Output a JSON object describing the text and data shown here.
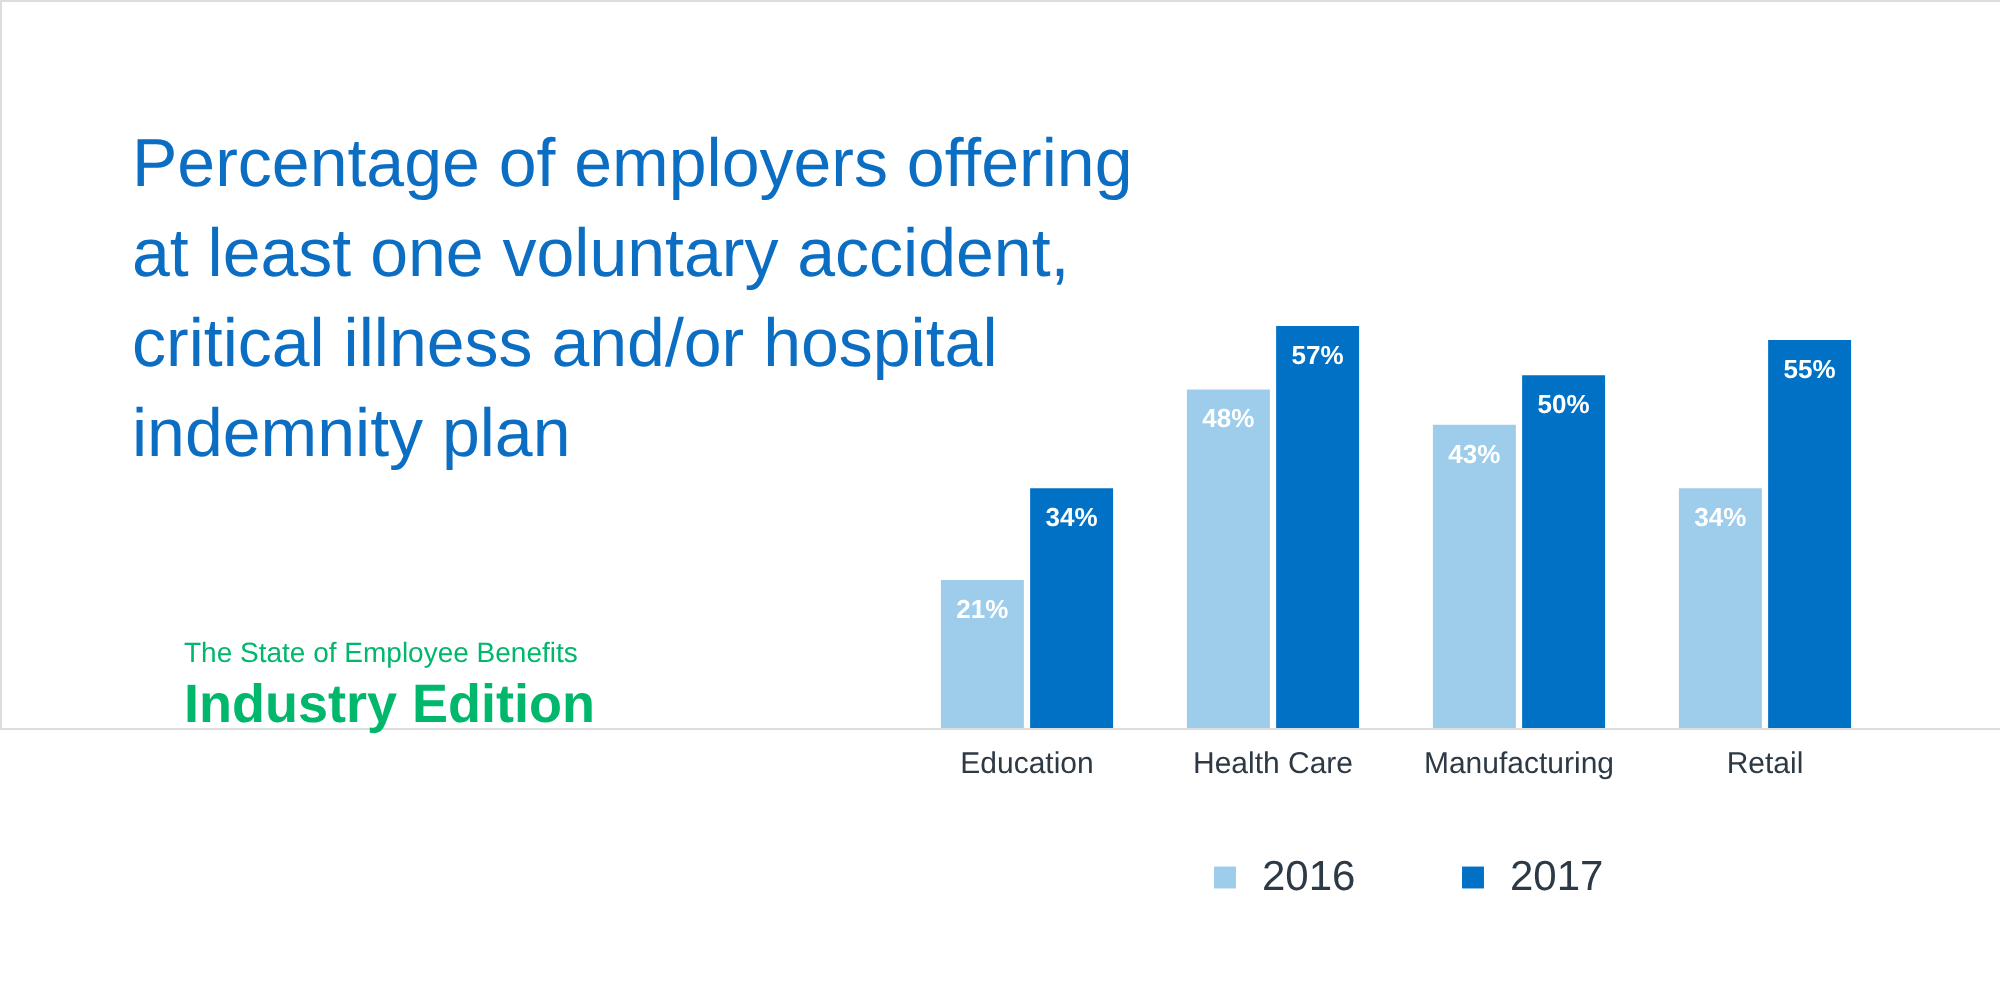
{
  "chart_data": {
    "type": "bar",
    "title": "Percentage of employers offering at least one voluntary accident, critical illness and/or hospital indemnity plan",
    "categories": [
      "Education",
      "Health Care",
      "Manufacturing",
      "Retail"
    ],
    "series": [
      {
        "name": "2016",
        "color": "#9dcdeb",
        "values": [
          21,
          48,
          43,
          34
        ],
        "value_labels": [
          "21%",
          "48%",
          "43%",
          "34%"
        ]
      },
      {
        "name": "2017",
        "color": "#0071c5",
        "values": [
          34,
          57,
          50,
          55
        ],
        "value_labels": [
          "34%",
          "57%",
          "50%",
          "55%"
        ]
      }
    ],
    "legend": "bottom",
    "annotations": [
      "The State of Employee Benefits",
      "Industry Edition"
    ]
  }
}
